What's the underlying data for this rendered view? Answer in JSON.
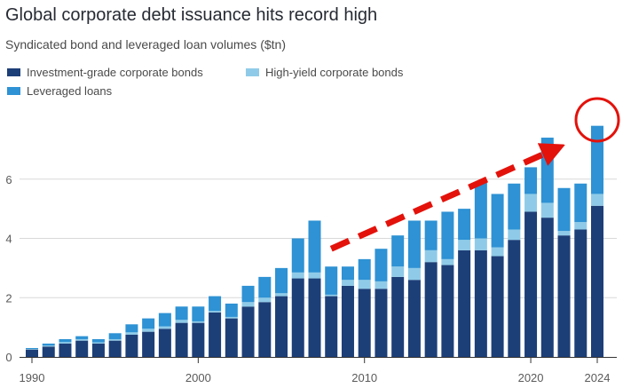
{
  "title": "Global corporate debt issuance hits record high",
  "subtitle": "Syndicated bond and leveraged loan volumes ($tn)",
  "colors": {
    "investment_grade": "#1d3f78",
    "high_yield": "#8fcbe8",
    "leveraged_loans": "#2e92d4",
    "annotation": "#e3120b",
    "gridline": "#d9d9d9",
    "axis": "#333333"
  },
  "chart_data": {
    "type": "bar",
    "stacked": true,
    "title": "Global corporate debt issuance hits record high",
    "subtitle": "Syndicated bond and leveraged loan volumes ($tn)",
    "xlabel": "",
    "ylabel": "",
    "ylim": [
      0,
      8
    ],
    "yticks": [
      0,
      2,
      4,
      6
    ],
    "xticks": [
      1990,
      2000,
      2010,
      2020,
      2024
    ],
    "grid": true,
    "legend_position": "top-left",
    "categories": [
      1990,
      1991,
      1992,
      1993,
      1994,
      1995,
      1996,
      1997,
      1998,
      1999,
      2000,
      2001,
      2002,
      2003,
      2004,
      2005,
      2006,
      2007,
      2008,
      2009,
      2010,
      2011,
      2012,
      2013,
      2014,
      2015,
      2016,
      2017,
      2018,
      2019,
      2020,
      2021,
      2022,
      2023,
      2024
    ],
    "series": [
      {
        "name": "Investment-grade corporate bonds",
        "color": "#1d3f78",
        "values": [
          0.25,
          0.35,
          0.45,
          0.55,
          0.45,
          0.55,
          0.75,
          0.85,
          0.95,
          1.15,
          1.15,
          1.5,
          1.3,
          1.7,
          1.85,
          2.05,
          2.65,
          2.65,
          2.05,
          2.4,
          2.3,
          2.3,
          2.7,
          2.6,
          3.2,
          3.1,
          3.6,
          3.6,
          3.4,
          3.95,
          4.9,
          4.7,
          4.1,
          4.3,
          5.1
        ]
      },
      {
        "name": "High-yield corporate bonds",
        "color": "#8fcbe8",
        "values": [
          0.02,
          0.03,
          0.05,
          0.05,
          0.04,
          0.05,
          0.08,
          0.1,
          0.08,
          0.1,
          0.05,
          0.05,
          0.05,
          0.15,
          0.15,
          0.1,
          0.2,
          0.2,
          0.05,
          0.2,
          0.3,
          0.25,
          0.35,
          0.4,
          0.4,
          0.2,
          0.35,
          0.4,
          0.3,
          0.35,
          0.6,
          0.5,
          0.15,
          0.25,
          0.4
        ]
      },
      {
        "name": "Leveraged loans",
        "color": "#2e92d4",
        "values": [
          0.03,
          0.07,
          0.1,
          0.1,
          0.11,
          0.2,
          0.27,
          0.35,
          0.45,
          0.45,
          0.5,
          0.5,
          0.45,
          0.55,
          0.7,
          0.85,
          1.15,
          1.75,
          0.95,
          0.45,
          0.7,
          1.1,
          1.05,
          1.6,
          1.0,
          1.6,
          1.05,
          1.9,
          1.8,
          1.55,
          0.9,
          2.2,
          1.45,
          1.3,
          2.3
        ]
      }
    ],
    "annotations": [
      {
        "type": "arrow",
        "style": "dashed",
        "color": "#e3120b",
        "from": [
          2008,
          3.65
        ],
        "to": [
          2021.4,
          7.0
        ]
      },
      {
        "type": "circle",
        "color": "#e3120b",
        "center": [
          2024,
          8.0
        ]
      }
    ]
  }
}
